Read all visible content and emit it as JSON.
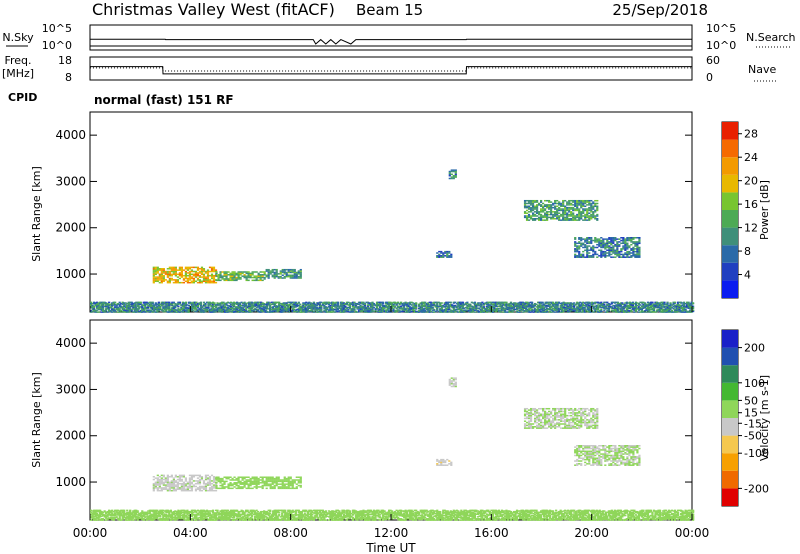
{
  "header": {
    "station": "Christmas Valley West (fitACF)",
    "beam": "Beam 15",
    "date": "25/Sep/2018"
  },
  "noise_panel": {
    "left_label": "N.Sky",
    "right_label": "N.Search",
    "left_ticks": [
      "10^5",
      "10^0"
    ],
    "right_ticks": [
      "10^5",
      "10^0"
    ]
  },
  "freq_panel": {
    "left_label_line1": "Freq.",
    "left_label_line2": "[MHz]",
    "right_label": "Nave",
    "left_ticks": [
      "18",
      "8"
    ],
    "right_ticks": [
      "60",
      "0"
    ]
  },
  "cpid": {
    "label": "CPID",
    "value": "normal (fast) 151 RF"
  },
  "x_axis": {
    "title": "Time UT",
    "tick_labels": [
      "00:00",
      "04:00",
      "08:00",
      "12:00",
      "16:00",
      "20:00",
      "00:00"
    ]
  },
  "colors": {
    "power": [
      "#0a1cf0",
      "#2040c0",
      "#2a6aa8",
      "#3f8f7a",
      "#4daa55",
      "#78c530",
      "#e8b800",
      "#f39a00",
      "#f56a00",
      "#e82000"
    ],
    "velocity": [
      "#e00000",
      "#f06a00",
      "#f7a000",
      "#f5c850",
      "#c8c8c8",
      "#8fd65a",
      "#44b832",
      "#2f8a5a",
      "#2050b0",
      "#1a20c8"
    ]
  },
  "chart_data": [
    {
      "type": "line",
      "title": "N.Sky / N.Search",
      "xlabel": "Time UT",
      "xlim_hours": [
        0,
        24
      ],
      "series": [
        {
          "name": "N.Sky",
          "x": [
            0,
            3,
            3.01,
            8.9,
            9.0,
            9.2,
            9.4,
            9.6,
            9.8,
            10.0,
            10.4,
            10.6,
            11.0,
            15,
            15.01,
            24
          ],
          "y": [
            1.2,
            1.2,
            1.1,
            1.1,
            0.0,
            1.1,
            0.0,
            1.1,
            0.0,
            1.1,
            0.0,
            1.1,
            1.1,
            1.1,
            1.2,
            1.2
          ]
        },
        {
          "name": "N.Search",
          "x": [
            0,
            8.9,
            9.0,
            11.0,
            24
          ],
          "y": [
            0,
            0,
            0,
            0,
            0
          ]
        }
      ]
    },
    {
      "type": "line",
      "title": "Freq. [MHz] / Nave",
      "xlabel": "Time UT",
      "xlim_hours": [
        0,
        24
      ],
      "series": [
        {
          "name": "Freq.",
          "unit": "MHz",
          "x": [
            0,
            2.9,
            2.91,
            15,
            15.01,
            24
          ],
          "y": [
            14.0,
            14.0,
            10.2,
            10.2,
            14.0,
            14.0
          ]
        },
        {
          "name": "Nave",
          "x": [
            0,
            2.9,
            2.91,
            15,
            15.01,
            24
          ],
          "y": [
            32,
            32,
            22,
            22,
            32,
            32
          ]
        }
      ],
      "ylim_left": [
        8,
        18
      ],
      "ylim_right": [
        0,
        60
      ]
    },
    {
      "type": "heatmap",
      "title": "Power",
      "xlabel": "Time UT",
      "ylabel": "Slant Range [km]",
      "xlim_hours": [
        0,
        24
      ],
      "ylim": [
        180,
        4500
      ],
      "y_ticks": [
        1000,
        2000,
        3000,
        4000
      ],
      "colorbar": {
        "label": "Power [dB]",
        "ticks": [
          4,
          8,
          12,
          16,
          20,
          24,
          28
        ],
        "range": [
          0,
          30
        ]
      },
      "regions": [
        {
          "t0": 0.0,
          "t1": 24.0,
          "r0": 180,
          "r1": 400,
          "value": 10
        },
        {
          "t0": 2.5,
          "t1": 5.0,
          "r0": 800,
          "r1": 1150,
          "value": 20
        },
        {
          "t0": 5.0,
          "t1": 7.0,
          "r0": 850,
          "r1": 1050,
          "value": 14
        },
        {
          "t0": 7.0,
          "t1": 8.4,
          "r0": 900,
          "r1": 1100,
          "value": 11
        },
        {
          "t0": 13.8,
          "t1": 14.4,
          "r0": 1350,
          "r1": 1500,
          "value": 9
        },
        {
          "t0": 14.3,
          "t1": 14.6,
          "r0": 3050,
          "r1": 3250,
          "value": 10
        },
        {
          "t0": 17.3,
          "t1": 20.2,
          "r0": 2150,
          "r1": 2600,
          "value": 12
        },
        {
          "t0": 19.3,
          "t1": 21.9,
          "r0": 1350,
          "r1": 1800,
          "value": 9
        }
      ]
    },
    {
      "type": "heatmap",
      "title": "Velocity",
      "xlabel": "Time UT",
      "ylabel": "Slant Range [km]",
      "xlim_hours": [
        0,
        24
      ],
      "ylim": [
        180,
        4500
      ],
      "y_ticks": [
        1000,
        2000,
        3000,
        4000
      ],
      "colorbar": {
        "label": "Velocity [m s-1]",
        "ticks": [
          -200,
          -100,
          -50,
          -15,
          15,
          50,
          100,
          200
        ],
        "range": [
          -250,
          250
        ]
      },
      "regions": [
        {
          "t0": 0.0,
          "t1": 24.0,
          "r0": 180,
          "r1": 400,
          "value": 30
        },
        {
          "t0": 2.5,
          "t1": 5.0,
          "r0": 800,
          "r1": 1150,
          "value": -10
        },
        {
          "t0": 5.0,
          "t1": 8.4,
          "r0": 850,
          "r1": 1100,
          "value": 35
        },
        {
          "t0": 13.8,
          "t1": 14.4,
          "r0": 1350,
          "r1": 1500,
          "value": -40
        },
        {
          "t0": 14.3,
          "t1": 14.6,
          "r0": 3050,
          "r1": 3250,
          "value": -10
        },
        {
          "t0": 17.3,
          "t1": 20.2,
          "r0": 2150,
          "r1": 2600,
          "value": 0
        },
        {
          "t0": 19.3,
          "t1": 21.9,
          "r0": 1350,
          "r1": 1800,
          "value": 0
        }
      ]
    }
  ]
}
